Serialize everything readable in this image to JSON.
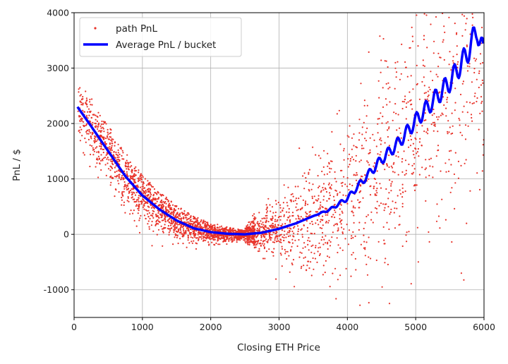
{
  "chart_data": {
    "type": "scatter",
    "title": "",
    "xlabel": "Closing ETH Price",
    "ylabel": "PnL / $",
    "xlim": [
      0,
      6000
    ],
    "ylim": [
      -1500,
      4000
    ],
    "xticks": [
      "0",
      "1000",
      "2000",
      "3000",
      "4000",
      "5000",
      "6000"
    ],
    "yticks": [
      "-1000",
      "0",
      "1000",
      "2000",
      "3000",
      "4000"
    ],
    "grid": true,
    "legend_placement": "top-left",
    "series": [
      {
        "name": "path PnL",
        "kind": "scatter",
        "color": "#e8332a"
      },
      {
        "name": "Average PnL / bucket",
        "kind": "line",
        "color": "#0000ff",
        "x": [
          50,
          250,
          500,
          750,
          1000,
          1250,
          1500,
          1750,
          2000,
          2250,
          2500,
          2750,
          3000,
          3250,
          3500,
          3750,
          4000,
          4250,
          4500,
          4750,
          5000,
          5250,
          5500,
          5750,
          5900,
          6000
        ],
        "y": [
          2300,
          1950,
          1500,
          1050,
          700,
          450,
          250,
          110,
          40,
          10,
          0,
          30,
          100,
          200,
          330,
          450,
          650,
          1000,
          1350,
          1650,
          2050,
          2400,
          2750,
          3250,
          3700,
          3200
        ]
      }
    ]
  }
}
